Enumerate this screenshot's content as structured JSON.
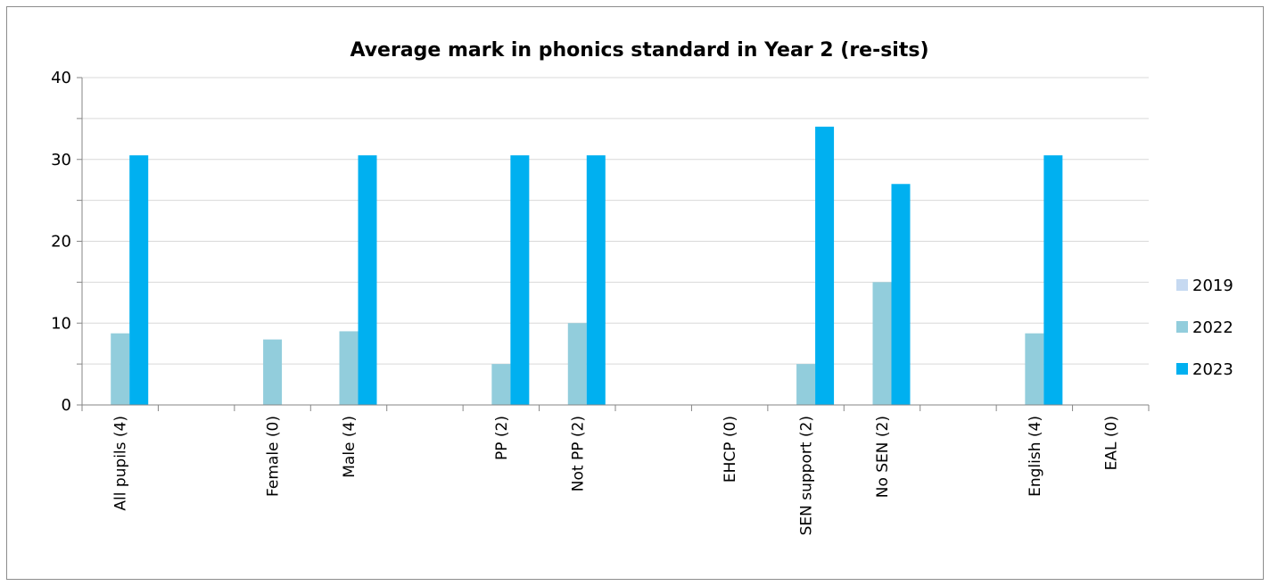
{
  "chart_data": {
    "type": "bar",
    "title": "Average mark in phonics standard in Year 2 (re-sits)",
    "categories": [
      "All pupils (4)",
      "",
      "Female (0)",
      "Male (4)",
      "",
      "PP (2)",
      "Not PP (2)",
      "",
      "EHCP (0)",
      "SEN support (2)",
      "No SEN (2)",
      "",
      "English (4)",
      "EAL (0)"
    ],
    "series": [
      {
        "name": "2019",
        "color": "#c6d9f1",
        "values": [
          0,
          0,
          0,
          0,
          0,
          0,
          0,
          0,
          0,
          0,
          0,
          0,
          0,
          0
        ]
      },
      {
        "name": "2022",
        "color": "#92cddc",
        "values": [
          8.75,
          0,
          8,
          9,
          0,
          5,
          10,
          0,
          0,
          5,
          15,
          0,
          8.75,
          0
        ]
      },
      {
        "name": "2023",
        "color": "#00b0f0",
        "values": [
          30.5,
          0,
          0,
          30.5,
          0,
          30.5,
          30.5,
          0,
          0,
          34,
          27,
          0,
          30.5,
          0
        ]
      }
    ],
    "yticks": [
      0,
      10,
      20,
      30,
      40
    ],
    "ylim": [
      0,
      40
    ],
    "grid": true,
    "legend": "right"
  }
}
